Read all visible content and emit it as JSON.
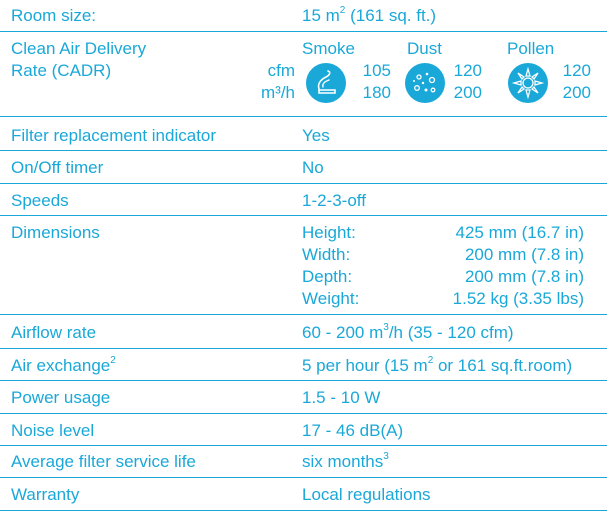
{
  "rows": {
    "room_size": {
      "label": "Room size:",
      "value_pre": "15 m",
      "value_sup": "2",
      "value_post": " (161 sq. ft.)"
    },
    "cadr": {
      "label_line1": "Clean Air Delivery",
      "label_line2": "Rate (CADR)",
      "units": [
        "cfm",
        "m³/h"
      ],
      "categories": [
        {
          "name": "Smoke",
          "icon": "smoke-icon",
          "cfm": "105",
          "m3h": "180"
        },
        {
          "name": "Dust",
          "icon": "dust-icon",
          "cfm": "120",
          "m3h": "200"
        },
        {
          "name": "Pollen",
          "icon": "pollen-icon",
          "cfm": "120",
          "m3h": "200"
        }
      ]
    },
    "filter_indicator": {
      "label": "Filter replacement indicator",
      "value": "Yes"
    },
    "timer": {
      "label": "On/Off timer",
      "value": "No"
    },
    "speeds": {
      "label": "Speeds",
      "value": "1-2-3-off"
    },
    "dimensions": {
      "label": "Dimensions",
      "items": [
        {
          "key": "Height:",
          "value": "425 mm (16.7 in)"
        },
        {
          "key": "Width:",
          "value": "200 mm (7.8 in)"
        },
        {
          "key": "Depth:",
          "value": "200 mm (7.8 in)"
        },
        {
          "key": "Weight:",
          "value": "1.52 kg (3.35 lbs)"
        }
      ]
    },
    "airflow": {
      "label": "Airflow rate",
      "value_pre": "60 - 200 m",
      "value_sup": "3",
      "value_post": "/h (35 - 120 cfm)"
    },
    "air_exchange": {
      "label": "Air exchange",
      "label_sup": "2",
      "value_pre": "5 per hour (15 m",
      "value_sup": "2",
      "value_post": " or 161 sq.ft.room)"
    },
    "power": {
      "label": "Power usage",
      "value": "1.5 - 10 W"
    },
    "noise": {
      "label": "Noise level",
      "value": "17 - 46 dB(A)"
    },
    "filter_life": {
      "label": "Average filter service life",
      "value": "six months",
      "value_sup": "3"
    },
    "warranty": {
      "label": "Warranty",
      "value": "Local regulations"
    }
  },
  "colors": {
    "accent": "#1aa8d8",
    "background": "#ffffff"
  }
}
